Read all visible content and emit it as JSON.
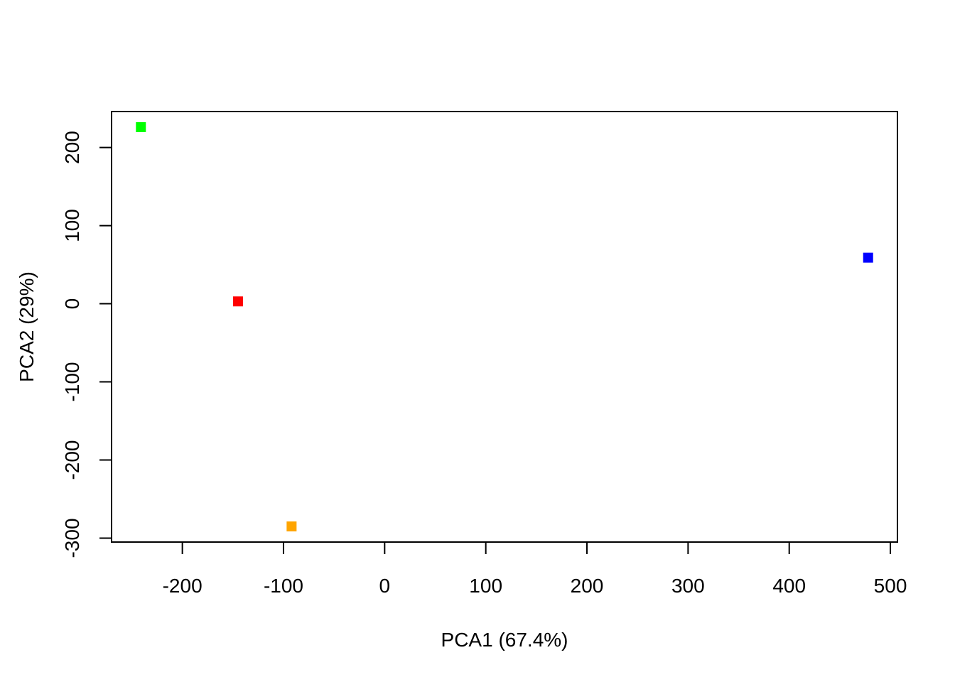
{
  "chart_data": {
    "type": "scatter",
    "xlabel": "PCA1 (67.4%)",
    "ylabel": "PCA2 (29%)",
    "xlim": [
      -270,
      507
    ],
    "ylim": [
      -305,
      246
    ],
    "xticks": [
      -200,
      -100,
      0,
      100,
      200,
      300,
      400,
      500
    ],
    "yticks": [
      -300,
      -200,
      -100,
      0,
      100,
      200
    ],
    "grid": false,
    "legend": "none",
    "points": [
      {
        "x": -241,
        "y": 226,
        "color": "#00ff00"
      },
      {
        "x": -145,
        "y": 3,
        "color": "#ff0000"
      },
      {
        "x": -92,
        "y": -285,
        "color": "#ffa500"
      },
      {
        "x": 478,
        "y": 59,
        "color": "#0000ff"
      }
    ]
  }
}
